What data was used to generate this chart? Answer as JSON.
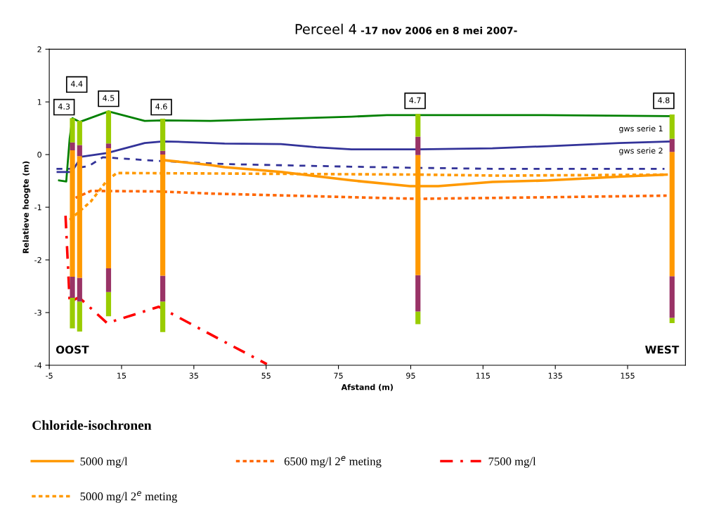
{
  "chart_data": {
    "type": "line",
    "title": "Perceel 4",
    "subtitle": "-17 nov 2006 en 8 mei 2007-",
    "xlabel": "Afstand (m)",
    "ylabel": "Relatieve hoogte (m)",
    "legend_title": "Chloride-isochronen",
    "legend": "bottom",
    "grid": false,
    "marker": "none",
    "xlim": [
      -5,
      171
    ],
    "ylim": [
      -4,
      2
    ],
    "xticks": [
      -5,
      15,
      35,
      55,
      75,
      95,
      115,
      135,
      155
    ],
    "yticks": [
      -4,
      -3,
      -2,
      -1,
      0,
      1,
      2
    ],
    "series": [
      {
        "color": "#008000",
        "line_style": "solid",
        "x": [
          -2.3,
          -0.3,
          0.65,
          1.4,
          3.4,
          11.4,
          21.4,
          26.4,
          39.6,
          78.6,
          88.4,
          97,
          131.8,
          167.3
        ],
        "values": [
          -0.49,
          -0.51,
          0.31,
          0.69,
          0.62,
          0.82,
          0.64,
          0.65,
          0.64,
          0.72,
          0.75,
          0.75,
          0.75,
          0.73
        ]
      },
      {
        "color": "#333399",
        "line_style": "solid",
        "x": [
          -2.7,
          1.2,
          3.9,
          11,
          21.4,
          26.4,
          31.8,
          43.5,
          59.1,
          68.9,
          78.6,
          97,
          117.6,
          133.2,
          152.7,
          166.9
        ],
        "values": [
          -0.33,
          -0.33,
          -0.04,
          0.03,
          0.22,
          0.25,
          0.24,
          0.21,
          0.2,
          0.14,
          0.1,
          0.1,
          0.12,
          0.16,
          0.22,
          0.25
        ]
      },
      {
        "color": "#333399",
        "line_style": "dashed",
        "x": [
          -3,
          0.5,
          5.9,
          9.8,
          25,
          43.5,
          78.6,
          95,
          117.6,
          165.2
        ],
        "values": [
          -0.27,
          -0.27,
          -0.22,
          -0.05,
          -0.12,
          -0.18,
          -0.23,
          -0.25,
          -0.27,
          -0.27
        ]
      },
      {
        "name": "5000 mg/l",
        "color": "#ff9900",
        "line_style": "solid",
        "x": [
          27.3,
          39.6,
          43.5,
          59.1,
          78.6,
          94.8,
          102.6,
          117.6,
          133.2,
          152.7,
          165.8
        ],
        "values": [
          -0.11,
          -0.2,
          -0.24,
          -0.33,
          -0.49,
          -0.6,
          -0.6,
          -0.52,
          -0.49,
          -0.42,
          -0.38
        ]
      },
      {
        "name": "5000 mg/l 2$^{e}$ meting",
        "color": "#ff9900",
        "line_style": "dotted",
        "x": [
          0.65,
          6.5,
          11,
          13.7,
          43.5,
          97,
          120,
          165.8
        ],
        "values": [
          -1.24,
          -0.89,
          -0.49,
          -0.35,
          -0.36,
          -0.38,
          -0.4,
          -0.38
        ]
      },
      {
        "name": "6500 mg/l 2$^{e}$ meting",
        "color": "#ff6600",
        "line_style": "dotted",
        "x": [
          2.3,
          6.5,
          25,
          39.6,
          78.6,
          97,
          133,
          165.8
        ],
        "values": [
          -0.82,
          -0.69,
          -0.7,
          -0.74,
          -0.81,
          -0.84,
          -0.81,
          -0.78
        ]
      },
      {
        "name": "7500 mg/l",
        "color": "#ff0000",
        "line_style": "dashdot",
        "x": [
          -0.5,
          0.65,
          3.2,
          11,
          25.3,
          42.2,
          55.2
        ],
        "values": [
          -1.16,
          -2.8,
          -2.71,
          -3.2,
          -2.89,
          -3.51,
          -3.98
        ]
      },
      {
        "type": "bar",
        "color": "#99cc00",
        "x": [
          1.4,
          3.4,
          11.4,
          26.4,
          97,
          167.3
        ],
        "base": [
          -3.3,
          -3.36,
          -3.07,
          -3.37,
          -3.22,
          -3.2
        ],
        "values": [
          0.58,
          0.57,
          0.46,
          0.58,
          0.24,
          0.1
        ]
      },
      {
        "type": "bar",
        "color": "#993366",
        "x": [
          1.4,
          3.4,
          11.4,
          26.4,
          97,
          167.3
        ],
        "base": [
          -2.72,
          -2.79,
          -2.61,
          -2.79,
          -2.98,
          -3.1
        ],
        "values": [
          0.4,
          0.45,
          0.45,
          0.49,
          0.69,
          0.79
        ]
      },
      {
        "type": "bar",
        "color": "#ff9900",
        "x": [
          1.4,
          3.4,
          11.4,
          26.4,
          97,
          167.3
        ],
        "base": [
          -2.32,
          -2.34,
          -2.16,
          -2.3,
          -2.29,
          -2.31
        ],
        "values": [
          2.4,
          2.31,
          2.28,
          2.3,
          2.28,
          2.36
        ]
      },
      {
        "type": "bar",
        "color": "#993366",
        "x": [
          1.4,
          3.4,
          11.4,
          26.4,
          97,
          167.3
        ],
        "base": [
          0.08,
          -0.03,
          0.12,
          0,
          -0.01,
          0.05
        ],
        "values": [
          0.15,
          0.21,
          0.09,
          0.07,
          0.35,
          0.25
        ]
      },
      {
        "type": "bar",
        "color": "#99cc00",
        "x": [
          1.4,
          3.4,
          11.4,
          26.4,
          97,
          167.3
        ],
        "base": [
          0.23,
          0.18,
          0.21,
          0.07,
          0.34,
          0.3
        ],
        "values": [
          0.46,
          0.46,
          0.62,
          0.61,
          0.43,
          0.46
        ]
      }
    ],
    "annotations": [
      {
        "text": "4.3",
        "x": -0.9,
        "y": 0.9
      },
      {
        "text": "4.4",
        "x": 2.6,
        "y": 1.33
      },
      {
        "text": "4.5",
        "x": 11.4,
        "y": 1.06
      },
      {
        "text": "4.6",
        "x": 26,
        "y": 0.9
      },
      {
        "text": "4.7",
        "x": 96.2,
        "y": 1.02
      },
      {
        "text": "4.8",
        "x": 165,
        "y": 1.02
      },
      "OOST",
      "WEST",
      "gws serie 1",
      "gws serie 2"
    ]
  }
}
